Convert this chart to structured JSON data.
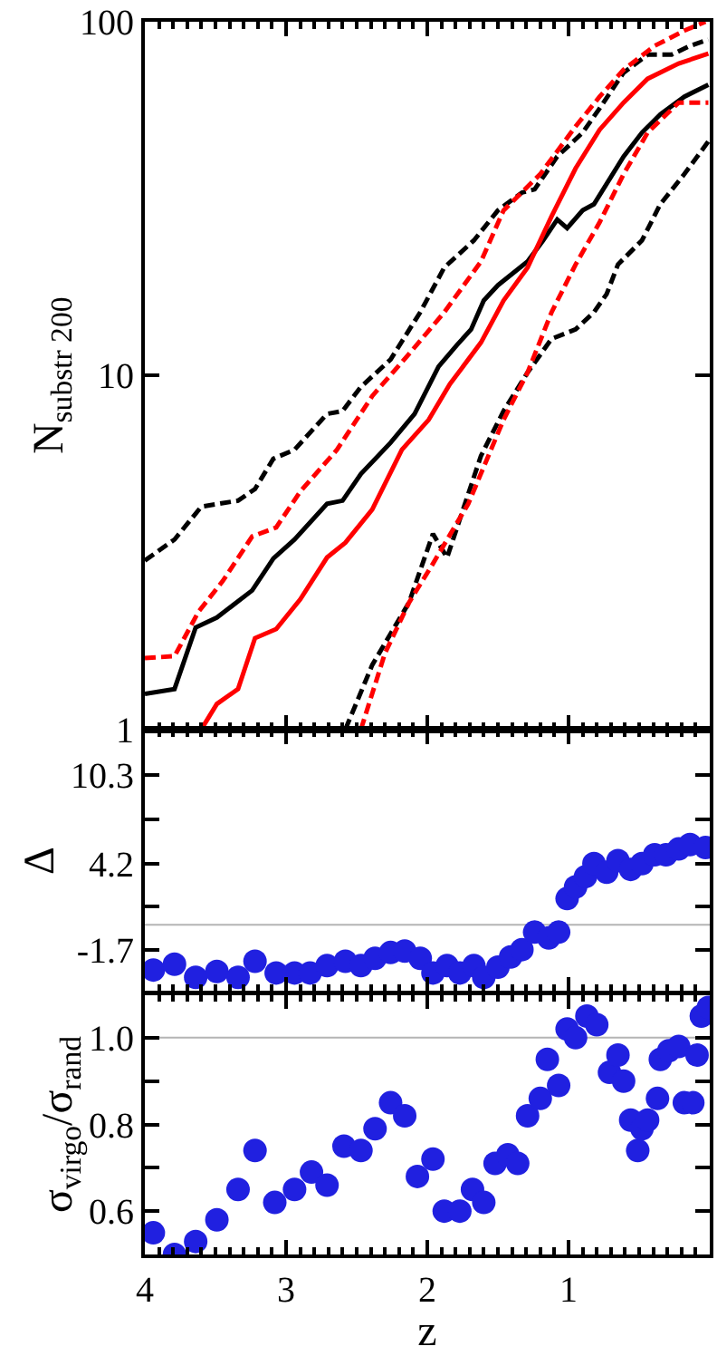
{
  "chart_data": [
    {
      "type": "line",
      "ylabel": "N$_{substr 200}$",
      "log": "y",
      "xlim": [
        4,
        0
      ],
      "xticks": [
        4,
        3,
        2,
        1
      ],
      "ylim": [
        1,
        100
      ],
      "yticks": [
        1,
        10,
        100
      ],
      "tick_labels": "y",
      "marker": "none",
      "series": [
        {
          "color": "#000000",
          "line_style": "solid",
          "x": [
            4.0,
            3.79,
            3.64,
            3.49,
            3.24,
            3.09,
            2.94,
            2.71,
            2.6,
            2.47,
            2.26,
            2.09,
            1.92,
            1.79,
            1.69,
            1.6,
            1.5,
            1.29,
            1.18,
            1.08,
            1.01,
            0.9,
            0.82,
            0.61,
            0.48,
            0.35,
            0.18,
            0.01
          ],
          "values": [
            1.26,
            1.3,
            1.94,
            2.07,
            2.47,
            3.04,
            3.44,
            4.34,
            4.43,
            5.27,
            6.46,
            7.79,
            10.6,
            12.2,
            13.5,
            16.3,
            18.0,
            21.0,
            24.1,
            27.6,
            26.1,
            29.3,
            30.5,
            41.6,
            48.6,
            54.7,
            61.4,
            66.4
          ]
        },
        {
          "color": "#ff0000",
          "line_style": "solid",
          "x": [
            3.6,
            3.49,
            3.34,
            3.22,
            3.07,
            2.9,
            2.71,
            2.58,
            2.39,
            2.18,
            1.99,
            1.84,
            1.62,
            1.46,
            1.29,
            1.12,
            0.95,
            0.78,
            0.61,
            0.44,
            0.22,
            0.01
          ],
          "values": [
            1.0,
            1.18,
            1.3,
            1.81,
            1.92,
            2.33,
            3.06,
            3.37,
            4.18,
            6.17,
            7.5,
            9.46,
            12.4,
            16.3,
            20.2,
            28.2,
            38.5,
            49.5,
            59.1,
            69.0,
            76.2,
            81.3
          ]
        },
        {
          "color": "#000000",
          "line_style": "dashed",
          "x": [
            4.0,
            3.79,
            3.6,
            3.34,
            3.22,
            3.09,
            2.94,
            2.71,
            2.6,
            2.47,
            2.26,
            2.05,
            1.88,
            1.67,
            1.5,
            1.33,
            1.24,
            1.08,
            0.9,
            0.78,
            0.61,
            0.44,
            0.27,
            0.14,
            0.01
          ],
          "values": [
            3.0,
            3.44,
            4.26,
            4.43,
            4.78,
            5.82,
            6.17,
            7.79,
            7.94,
            9.29,
            11.1,
            15.1,
            20.2,
            24.1,
            29.3,
            32.9,
            33.6,
            41.6,
            48.6,
            56.9,
            71.8,
            80.7,
            80.7,
            85.5,
            89.0
          ]
        },
        {
          "color": "#ff0000",
          "line_style": "dashed",
          "x": [
            4.0,
            3.79,
            3.62,
            3.45,
            3.24,
            3.07,
            2.9,
            2.64,
            2.39,
            2.13,
            1.88,
            1.62,
            1.46,
            1.2,
            0.95,
            0.78,
            0.61,
            0.39,
            0.18,
            0.03
          ],
          "values": [
            1.59,
            1.61,
            2.15,
            2.62,
            3.51,
            3.72,
            4.7,
            6.17,
            8.75,
            11.5,
            15.1,
            21.0,
            29.3,
            37.1,
            50.6,
            61.4,
            73.2,
            85.5,
            94.4,
            100
          ]
        },
        {
          "color": "#000000",
          "line_style": "dashed",
          "x": [
            2.58,
            2.39,
            2.13,
            1.96,
            1.86,
            1.62,
            1.46,
            1.29,
            1.12,
            0.95,
            0.82,
            0.73,
            0.65,
            0.48,
            0.35,
            0.18,
            0.01
          ],
          "values": [
            1.0,
            1.52,
            2.28,
            3.57,
            3.06,
            5.93,
            7.94,
            10.2,
            12.7,
            13.5,
            15.1,
            17.0,
            20.6,
            24.1,
            30.5,
            37.1,
            45.9
          ]
        },
        {
          "color": "#ff0000",
          "line_style": "dashed",
          "x": [
            2.47,
            2.3,
            2.13,
            1.96,
            1.71,
            1.46,
            1.29,
            1.12,
            0.95,
            0.78,
            0.61,
            0.44,
            0.22,
            0.01
          ],
          "values": [
            1.0,
            1.64,
            2.28,
            2.94,
            4.34,
            7.5,
            10.2,
            15.1,
            20.6,
            27.1,
            37.1,
            48.6,
            59.1,
            59.1
          ]
        }
      ]
    },
    {
      "type": "scatter",
      "ylabel": "Δ",
      "xlim": [
        4,
        0
      ],
      "xticks": [
        4,
        3,
        2,
        1
      ],
      "ylim": [
        -4.6,
        13.4
      ],
      "yticks": [
        -1.7,
        {
          "value": 1.25,
          "label": null
        },
        4.2,
        {
          "value": 7.25,
          "label": null
        },
        10.3
      ],
      "tick_labels": "y",
      "marker": "circle",
      "ref_lines": [
        {
          "axis": "y",
          "value": 0,
          "color": "#b4b4b4"
        }
      ],
      "series": [
        {
          "color": "#2020e0",
          "x": [
            3.94,
            3.79,
            3.64,
            3.49,
            3.34,
            3.22,
            3.07,
            2.94,
            2.83,
            2.71,
            2.58,
            2.47,
            2.37,
            2.26,
            2.16,
            2.05,
            1.96,
            1.86,
            1.77,
            1.67,
            1.6,
            1.5,
            1.41,
            1.33,
            1.24,
            1.14,
            1.07,
            1.01,
            0.95,
            0.88,
            0.82,
            0.73,
            0.65,
            0.56,
            0.48,
            0.39,
            0.31,
            0.22,
            0.14,
            0.03
          ],
          "values": [
            -3.1,
            -2.7,
            -3.6,
            -3.2,
            -3.6,
            -2.5,
            -3.3,
            -3.3,
            -3.3,
            -2.8,
            -2.5,
            -2.8,
            -2.3,
            -1.9,
            -1.8,
            -2.3,
            -3.3,
            -2.8,
            -3.3,
            -2.8,
            -3.6,
            -2.9,
            -2.2,
            -1.7,
            -0.5,
            -0.9,
            -0.5,
            1.8,
            2.6,
            3.3,
            4.2,
            3.6,
            4.4,
            3.8,
            4.2,
            4.8,
            4.8,
            5.2,
            5.5,
            5.3
          ]
        }
      ]
    },
    {
      "type": "scatter",
      "ylabel": "σ$_{virgo}$/σ$_{rand}$",
      "xlabel": "z",
      "xlim": [
        4,
        0
      ],
      "xticks": [
        4,
        3,
        2,
        1
      ],
      "ylim": [
        0.5,
        1.1
      ],
      "yticks": [
        0.6,
        {
          "value": 0.7,
          "label": null
        },
        0.8,
        {
          "value": 0.9,
          "label": null
        },
        {
          "value": 1.0,
          "label": "1.0"
        }
      ],
      "marker": "circle",
      "ref_lines": [
        {
          "axis": "y",
          "value": 1.0,
          "color": "#b4b4b4"
        }
      ],
      "series": [
        {
          "color": "#2020e0",
          "x": [
            3.94,
            3.79,
            3.64,
            3.49,
            3.34,
            3.22,
            3.08,
            2.94,
            2.82,
            2.71,
            2.59,
            2.47,
            2.37,
            2.26,
            2.16,
            2.07,
            1.96,
            1.88,
            1.77,
            1.68,
            1.6,
            1.52,
            1.43,
            1.36,
            1.29,
            1.2,
            1.15,
            1.07,
            1.01,
            0.95,
            0.87,
            0.8,
            0.71,
            0.65,
            0.61,
            0.56,
            0.51,
            0.48,
            0.44,
            0.37,
            0.35,
            0.29,
            0.22,
            0.18,
            0.12,
            0.09,
            0.06,
            0.01
          ],
          "values": [
            0.55,
            0.5,
            0.53,
            0.58,
            0.65,
            0.74,
            0.62,
            0.65,
            0.69,
            0.66,
            0.75,
            0.74,
            0.79,
            0.85,
            0.82,
            0.68,
            0.72,
            0.6,
            0.6,
            0.65,
            0.62,
            0.71,
            0.73,
            0.71,
            0.82,
            0.86,
            0.95,
            0.89,
            1.02,
            1.0,
            1.05,
            1.03,
            0.92,
            0.96,
            0.9,
            0.81,
            0.74,
            0.79,
            0.81,
            0.86,
            0.95,
            0.97,
            0.98,
            0.85,
            0.85,
            0.96,
            1.05,
            1.07
          ]
        }
      ]
    }
  ]
}
